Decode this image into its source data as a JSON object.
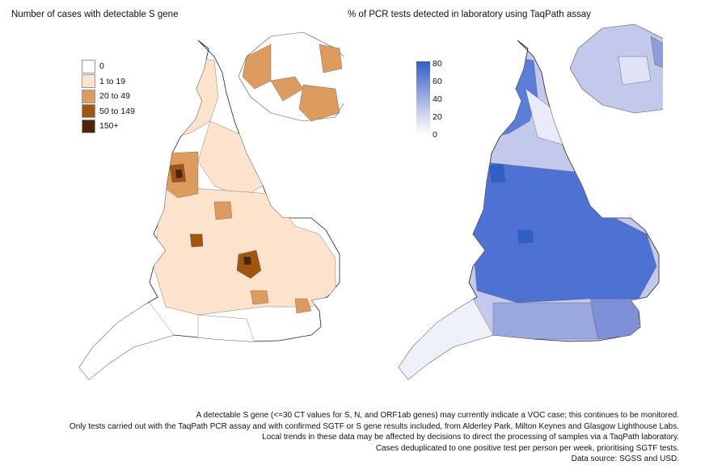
{
  "left_panel": {
    "title": "Number of cases with detectable S gene",
    "legend": [
      {
        "label": "0",
        "color": "#ffffff"
      },
      {
        "label": "1 to 19",
        "color": "#fde3cb"
      },
      {
        "label": "20 to 49",
        "color": "#dd9b5e"
      },
      {
        "label": "50 to 149",
        "color": "#a25411"
      },
      {
        "label": "150+",
        "color": "#4e2307"
      }
    ]
  },
  "right_panel": {
    "title": "% of PCR tests detected in laboratory using TaqPath assay",
    "legend_ticks": [
      "80",
      "60",
      "40",
      "20",
      "0"
    ],
    "scale_colors": {
      "high": "#2f5fc8",
      "low": "#ffffff"
    }
  },
  "footnotes": [
    "A detectable S gene (<=30 CT values for S, N, and ORF1ab genes) may currently indicate a VOC case; this continues to be monitored.",
    "Only tests carried out with the TaqPath PCR assay and with confirmed SGTF or S gene results included, from Alderley Park, Milton Keynes and Glasgow Lighthouse Labs.",
    "Local trends in these data may be affected by decisions to direct the processing of samples via a TaqPath laboratory.",
    "Cases deduplicated to one positive test per person per week, prioritising SGTF tests.",
    "Data source: SGSS and USD."
  ]
}
